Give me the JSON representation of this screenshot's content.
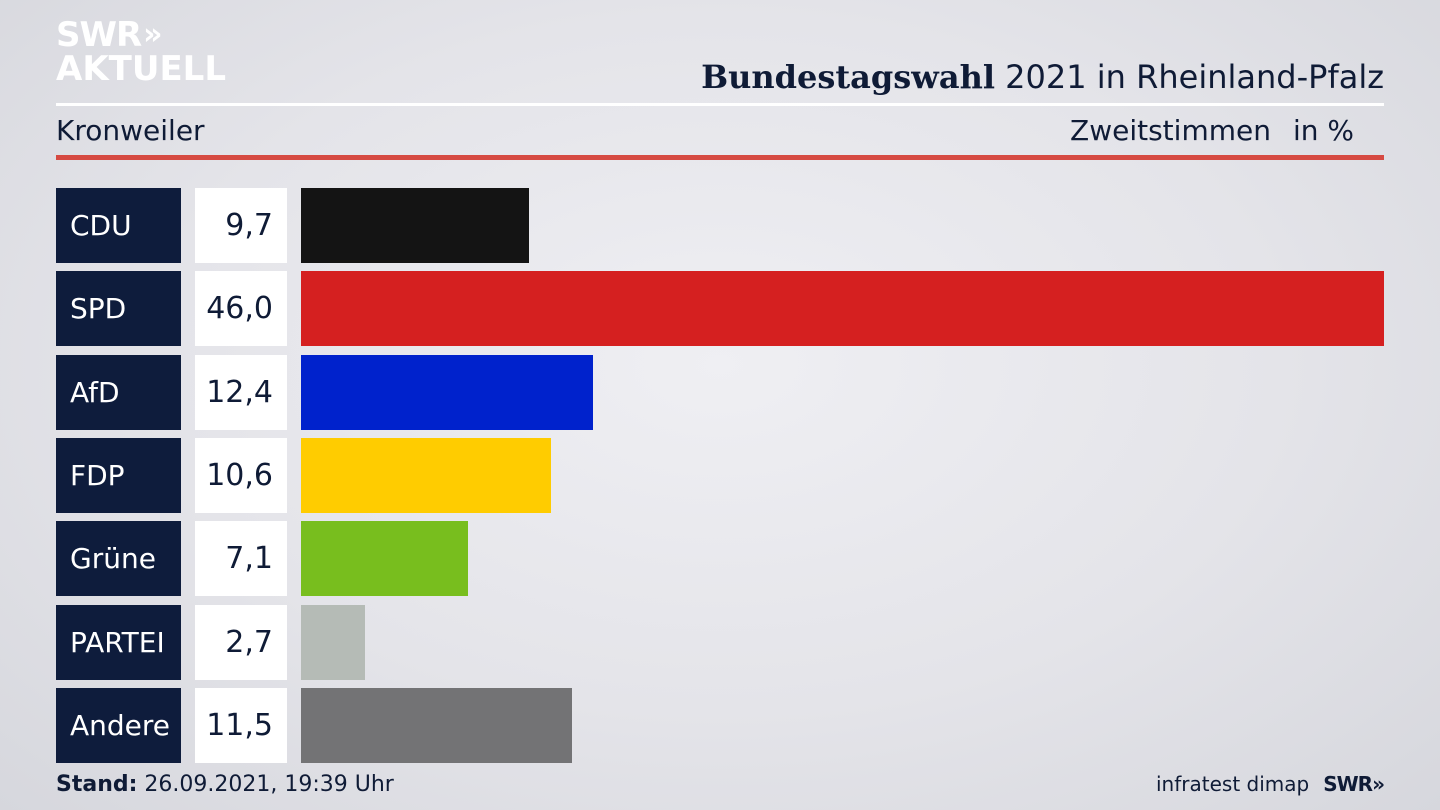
{
  "header": {
    "logo_line1": "SWR",
    "logo_chevrons": "»",
    "logo_line2": "AKTUELL",
    "title_bold": "Bundestagswahl",
    "title_rest": "2021 in Rheinland-Pfalz",
    "location": "Kronweiler",
    "measure": "Zweitstimmen",
    "unit": "in %"
  },
  "chart_data": {
    "type": "bar",
    "orientation": "horizontal",
    "categories": [
      "CDU",
      "SPD",
      "AfD",
      "FDP",
      "Grüne",
      "PARTEI",
      "Andere"
    ],
    "values": [
      9.7,
      46.0,
      12.4,
      10.6,
      7.1,
      2.7,
      11.5
    ],
    "value_labels": [
      "9,7",
      "46,0",
      "12,4",
      "10,6",
      "7,1",
      "2,7",
      "11,5"
    ],
    "colors": [
      "#141414",
      "#d52020",
      "#0022cc",
      "#ffcc00",
      "#78be1e",
      "#b5bbb6",
      "#737375"
    ],
    "xlim": [
      0,
      46.0
    ]
  },
  "footer": {
    "stand_label": "Stand:",
    "stand_value": "26.09.2021, 19:39 Uhr",
    "source": "infratest dimap",
    "brand": "SWR»"
  }
}
